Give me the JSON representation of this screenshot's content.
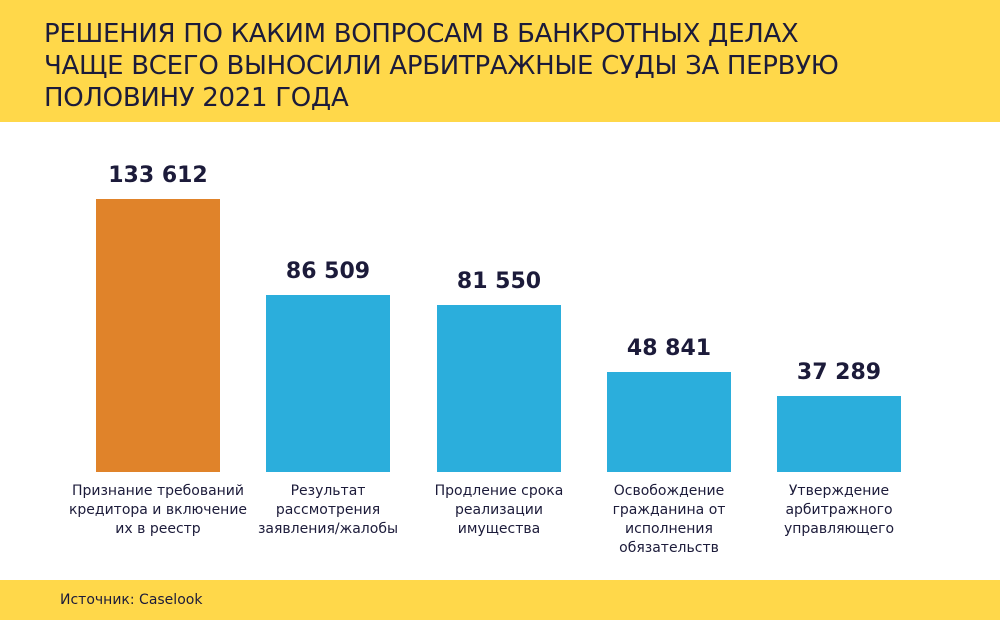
{
  "chart_data": {
    "type": "bar",
    "title": "Решения по каким вопросам в банкротных делах\nчаще всего выносили арбитражные суды за первую\nполовину 2021 года",
    "categories": [
      "Признание требований\nкредитора и включение\nих в реестр",
      "Результат\nрассмотрения\nзаявления/жалобы",
      "Продление срока\nреализации\nимущества",
      "Освобождение\nгражданина от\nисполнения\nобязательств",
      "Утверждение\nарбитражного\nуправляющего"
    ],
    "values": [
      133612,
      86509,
      81550,
      48841,
      37289
    ],
    "value_labels": [
      "133 612",
      "86 509",
      "81 550",
      "48 841",
      "37 289"
    ],
    "colors": [
      "#E0832A",
      "#2BAEDC",
      "#2BAEDC",
      "#2BAEDC",
      "#2BAEDC"
    ],
    "xlabel": "",
    "ylabel": "",
    "ylim": [
      0,
      133612
    ],
    "grid": false,
    "legend": "none"
  },
  "footer": {
    "source": "Источник: Caselook"
  }
}
